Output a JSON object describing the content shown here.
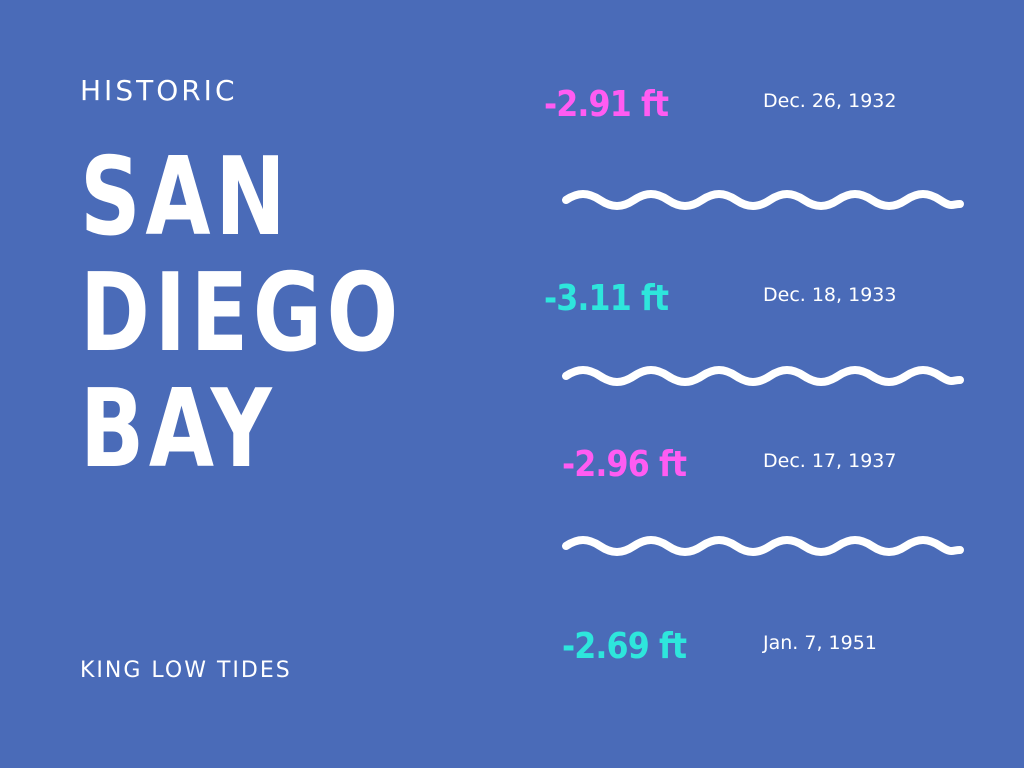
{
  "header": {
    "eyebrow": "HISTORIC",
    "title_lines": [
      "SAN",
      "DIEGO",
      "BAY"
    ],
    "subtitle": "KING LOW TIDES"
  },
  "tides": [
    {
      "value": "-2.91 ft",
      "date": "Dec. 26, 1932",
      "color": "#ff5cf2"
    },
    {
      "value": "-3.11 ft",
      "date": "Dec. 18, 1933",
      "color": "#2ee6dc"
    },
    {
      "value": "-2.96 ft",
      "date": "Dec. 17, 1937",
      "color": "#ff5cf2"
    },
    {
      "value": "-2.69 ft",
      "date": "Jan. 7, 1951",
      "color": "#2ee6dc"
    }
  ],
  "colors": {
    "background": "#4a6bb8",
    "text": "#ffffff",
    "accent_magenta": "#ff5cf2",
    "accent_cyan": "#2ee6dc"
  }
}
